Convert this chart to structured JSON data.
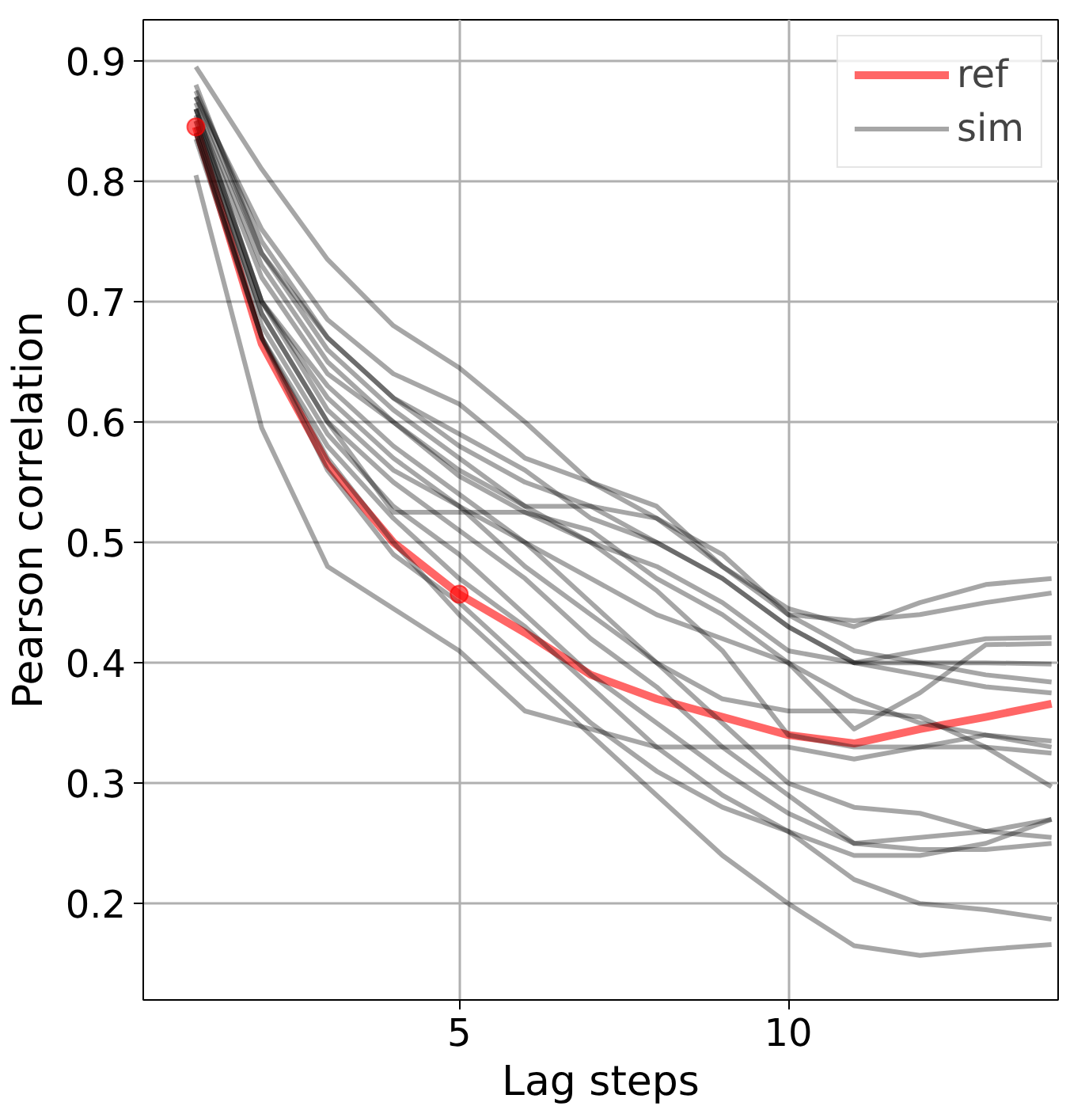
{
  "chart_data": {
    "type": "line",
    "xlabel": "Lag steps",
    "ylabel": "Pearson correlation",
    "x": [
      1,
      2,
      3,
      4,
      5,
      6,
      7,
      8,
      9,
      10,
      11,
      12,
      13,
      14
    ],
    "xlim": [
      0.2,
      14.1
    ],
    "ylim": [
      0.12,
      0.934
    ],
    "xticks": [
      5,
      10
    ],
    "yticks": [
      0.2,
      0.3,
      0.4,
      0.5,
      0.6,
      0.7,
      0.8,
      0.9
    ],
    "grid": true,
    "legend": "top right",
    "marker": "none",
    "line_style": "solid",
    "series": [
      {
        "name": "ref",
        "color": "#ff0000",
        "values": [
          0.845,
          0.665,
          0.565,
          0.5,
          0.457,
          0.425,
          0.39,
          0.37,
          0.355,
          0.34,
          0.333,
          0.345,
          0.355,
          0.366
        ]
      },
      {
        "name": "sim",
        "color": "#000000",
        "values": [
          0.895,
          0.81,
          0.735,
          0.68,
          0.645,
          0.6,
          0.55,
          0.53,
          0.48,
          0.445,
          0.43,
          0.45,
          0.465,
          0.47
        ]
      },
      {
        "color": "#000000",
        "values": [
          0.87,
          0.76,
          0.685,
          0.64,
          0.615,
          0.57,
          0.55,
          0.52,
          0.49,
          0.44,
          0.435,
          0.44,
          0.45,
          0.458
        ]
      },
      {
        "color": "#000000",
        "values": [
          0.875,
          0.75,
          0.67,
          0.62,
          0.58,
          0.55,
          0.53,
          0.5,
          0.47,
          0.43,
          0.4,
          0.41,
          0.42,
          0.421
        ]
      },
      {
        "color": "#000000",
        "values": [
          0.86,
          0.72,
          0.64,
          0.6,
          0.555,
          0.525,
          0.51,
          0.47,
          0.44,
          0.4,
          0.345,
          0.375,
          0.415,
          0.416
        ]
      },
      {
        "color": "#000000",
        "values": [
          0.88,
          0.74,
          0.66,
          0.61,
          0.57,
          0.53,
          0.5,
          0.48,
          0.45,
          0.41,
          0.4,
          0.4,
          0.4,
          0.399
        ]
      },
      {
        "color": "#000000",
        "values": [
          0.865,
          0.73,
          0.65,
          0.6,
          0.56,
          0.53,
          0.53,
          0.52,
          0.48,
          0.44,
          0.41,
          0.4,
          0.39,
          0.384
        ]
      },
      {
        "color": "#000000",
        "values": [
          0.87,
          0.74,
          0.67,
          0.62,
          0.59,
          0.56,
          0.52,
          0.5,
          0.47,
          0.43,
          0.4,
          0.39,
          0.38,
          0.375
        ]
      },
      {
        "color": "#000000",
        "values": [
          0.855,
          0.7,
          0.62,
          0.57,
          0.53,
          0.5,
          0.47,
          0.44,
          0.42,
          0.4,
          0.37,
          0.35,
          0.34,
          0.335
        ]
      },
      {
        "color": "#000000",
        "values": [
          0.85,
          0.69,
          0.6,
          0.525,
          0.525,
          0.525,
          0.5,
          0.46,
          0.41,
          0.34,
          0.33,
          0.33,
          0.33,
          0.325
        ]
      },
      {
        "color": "#000000",
        "values": [
          0.86,
          0.7,
          0.63,
          0.58,
          0.54,
          0.5,
          0.45,
          0.4,
          0.37,
          0.36,
          0.36,
          0.355,
          0.33,
          0.297
        ]
      },
      {
        "color": "#000000",
        "values": [
          0.845,
          0.68,
          0.59,
          0.53,
          0.49,
          0.44,
          0.39,
          0.35,
          0.31,
          0.275,
          0.25,
          0.255,
          0.26,
          0.27
        ]
      },
      {
        "color": "#000000",
        "values": [
          0.85,
          0.69,
          0.6,
          0.55,
          0.51,
          0.47,
          0.42,
          0.38,
          0.33,
          0.29,
          0.25,
          0.245,
          0.245,
          0.25
        ]
      },
      {
        "color": "#000000",
        "values": [
          0.86,
          0.7,
          0.61,
          0.56,
          0.53,
          0.48,
          0.44,
          0.4,
          0.35,
          0.3,
          0.28,
          0.275,
          0.26,
          0.255
        ]
      },
      {
        "color": "#000000",
        "values": [
          0.84,
          0.67,
          0.58,
          0.52,
          0.47,
          0.43,
          0.38,
          0.33,
          0.29,
          0.26,
          0.24,
          0.24,
          0.25,
          0.27
        ]
      },
      {
        "color": "#000000",
        "values": [
          0.84,
          0.67,
          0.56,
          0.49,
          0.45,
          0.4,
          0.35,
          0.31,
          0.28,
          0.26,
          0.22,
          0.2,
          0.195,
          0.187
        ]
      },
      {
        "color": "#000000",
        "values": [
          0.805,
          0.595,
          0.48,
          0.445,
          0.41,
          0.36,
          0.345,
          0.33,
          0.33,
          0.33,
          0.32,
          0.33,
          0.34,
          0.33
        ]
      },
      {
        "color": "#000000",
        "values": [
          0.835,
          0.67,
          0.57,
          0.5,
          0.44,
          0.39,
          0.34,
          0.29,
          0.24,
          0.2,
          0.165,
          0.157,
          0.162,
          0.166
        ]
      },
      {
        "type": "scatter",
        "color": "#ff0000",
        "marker": "circle",
        "x": [
          1,
          5
        ],
        "values": [
          0.845,
          0.457
        ]
      }
    ]
  }
}
